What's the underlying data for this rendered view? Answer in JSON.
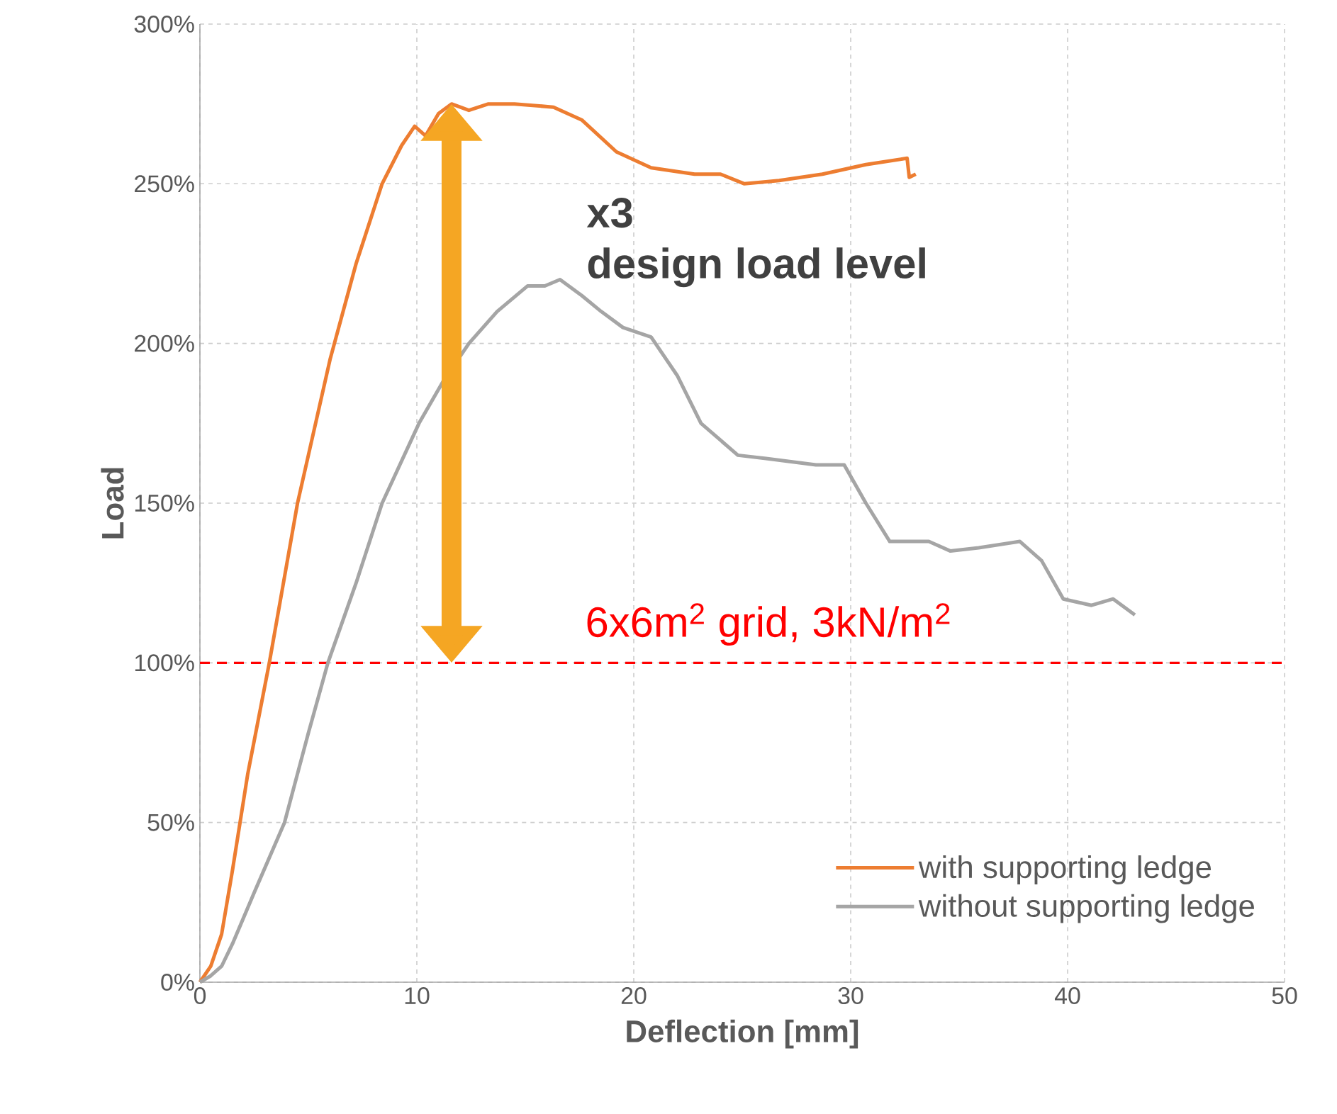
{
  "chart_data": {
    "type": "line",
    "xlabel": "Deflection [mm]",
    "ylabel": "Load",
    "xlim": [
      0,
      50
    ],
    "xticks": [
      0,
      10,
      20,
      30,
      40,
      50
    ],
    "ylim": [
      0,
      300
    ],
    "yticks": [
      {
        "value": 0,
        "label": "0%"
      },
      {
        "value": 50,
        "label": "50%"
      },
      {
        "value": 100,
        "label": "100%"
      },
      {
        "value": 150,
        "label": "150%"
      },
      {
        "value": 200,
        "label": "200%"
      },
      {
        "value": 250,
        "label": "250%"
      },
      {
        "value": 300,
        "label": "300%"
      }
    ],
    "grid": true,
    "legend": "bottom right",
    "marker": "none",
    "line_style": "solid",
    "series": [
      {
        "name": "with supporting ledge",
        "color": "#ed7d31",
        "x": [
          0,
          0.5,
          1,
          1.5,
          2.2,
          3.2,
          4.5,
          6,
          7.2,
          8.4,
          9.3,
          9.9,
          10.4,
          11,
          11.6,
          12.4,
          13.3,
          14.5,
          16.3,
          17.6,
          19.2,
          20.8,
          22.8,
          24,
          25.1,
          26.7,
          28.7,
          30.7,
          32.6,
          32.7,
          33
        ],
        "values": [
          0,
          5,
          15,
          35,
          65,
          100,
          150,
          195,
          225,
          250,
          262,
          268,
          265,
          272,
          275,
          273,
          275,
          275,
          274,
          270,
          260,
          255,
          253,
          253,
          250,
          251,
          253,
          256,
          258,
          252,
          253
        ]
      },
      {
        "name": "without supporting ledge",
        "color": "#a5a5a5",
        "x": [
          0,
          0.5,
          1,
          1.5,
          2.5,
          3.9,
          5,
          5.9,
          7.2,
          8.4,
          10.1,
          11.2,
          12.4,
          13.7,
          15.1,
          15.9,
          16.6,
          17.6,
          18.5,
          19.5,
          20.8,
          22,
          23.1,
          24.8,
          26.1,
          28.4,
          29.7,
          30.7,
          31.8,
          33.6,
          34.6,
          35.9,
          37.8,
          38.8,
          39.8,
          41.1,
          42.1,
          43.1
        ],
        "values": [
          0,
          2,
          5,
          12,
          28,
          50,
          78,
          100,
          125,
          150,
          175,
          188,
          200,
          210,
          218,
          218,
          220,
          215,
          210,
          205,
          202,
          190,
          175,
          165,
          164,
          162,
          162,
          150,
          138,
          138,
          135,
          136,
          138,
          132,
          120,
          118,
          120,
          115
        ]
      }
    ],
    "ref_lines": [
      {
        "axis": "y",
        "value": 100,
        "label": "6x6m$^{2}$ grid, 3kN/m$^{2}$",
        "color": "#ff0000",
        "line_style": "dashed"
      }
    ],
    "annotations": [
      "x3",
      "design load level"
    ]
  }
}
